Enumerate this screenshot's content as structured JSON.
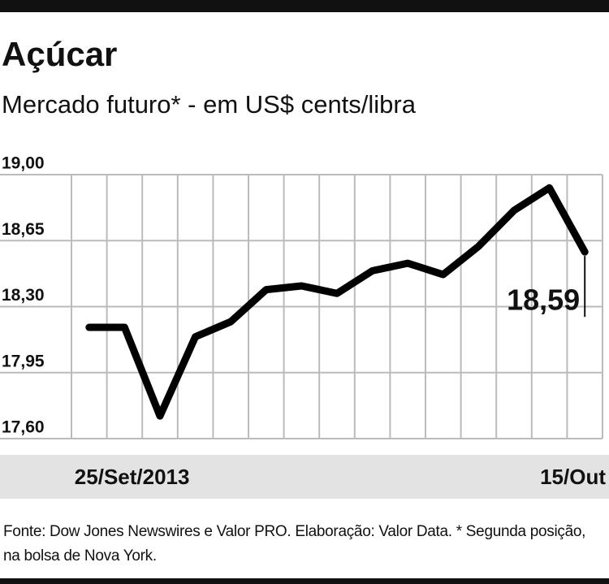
{
  "chart_data": {
    "type": "line",
    "title": "Açúcar",
    "subtitle": "Mercado futuro* - em US$ cents/libra",
    "categories": [
      "25/Set/2013",
      null,
      null,
      null,
      null,
      null,
      null,
      null,
      null,
      null,
      null,
      null,
      null,
      null,
      "15/Out"
    ],
    "values": [
      18.19,
      18.19,
      17.72,
      18.14,
      18.22,
      18.39,
      18.41,
      18.37,
      18.49,
      18.53,
      18.47,
      18.62,
      18.81,
      18.93,
      18.59
    ],
    "value_labels": [
      null,
      null,
      null,
      null,
      null,
      null,
      null,
      null,
      null,
      null,
      null,
      null,
      null,
      null,
      "18,59"
    ],
    "color": "#000000",
    "ylim": [
      17.6,
      19.0
    ],
    "yticks": [
      {
        "value": 17.6,
        "label": "17,60"
      },
      {
        "value": 17.95,
        "label": "17,95"
      },
      {
        "value": 18.3,
        "label": "18,30"
      },
      {
        "value": 18.65,
        "label": "18,65"
      },
      {
        "value": 19.0,
        "label": "19,00"
      }
    ],
    "grid": true,
    "source": "Fonte: Dow Jones Newswires e Valor PRO. Elaboração: Valor Data. * Segunda posição, na bolsa de Nova York."
  }
}
